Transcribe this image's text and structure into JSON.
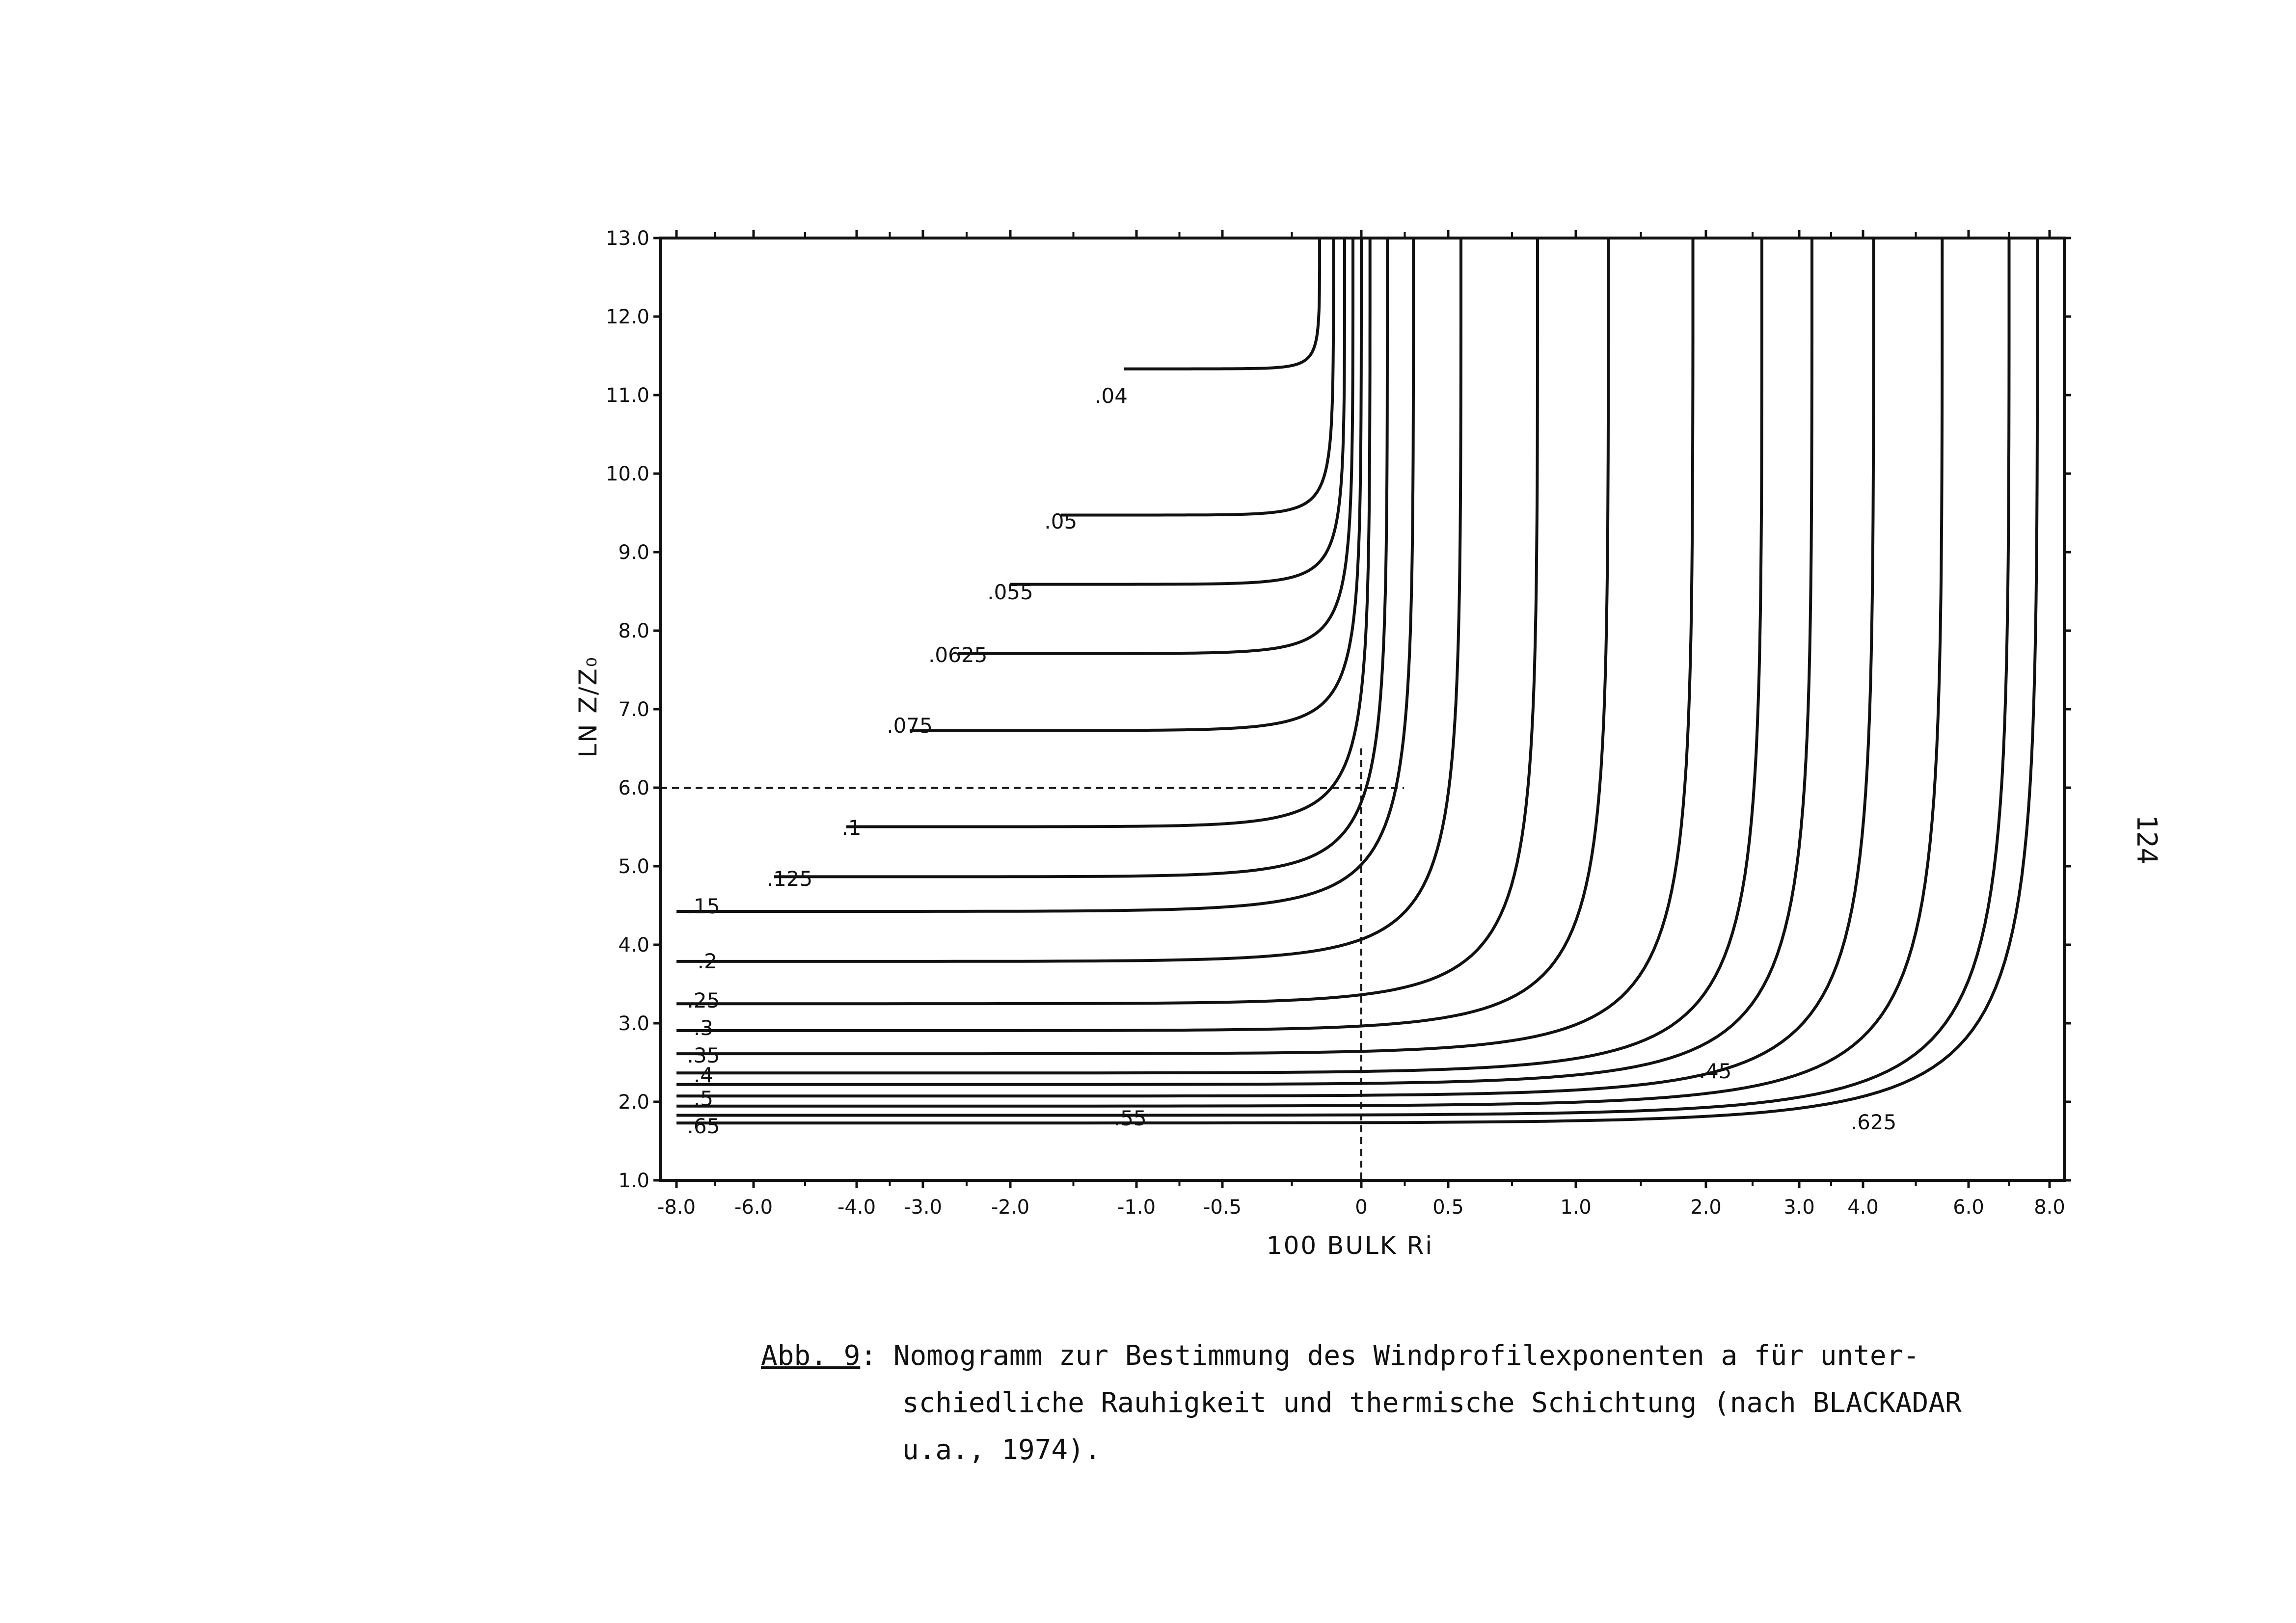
{
  "chart_data": {
    "type": "line",
    "xlabel": "100 BULK Ri",
    "ylabel": "LN Z/Z₀",
    "x_tick_labels": [
      "-8.0",
      "-6.0",
      "-4.0",
      "-3.0",
      "-2.0",
      "-1.0",
      "-0.5",
      "0",
      "0.5",
      "1.0",
      "2.0",
      "3.0",
      "4.0",
      "6.0",
      "8.0"
    ],
    "y_ticks": [
      1.0,
      2.0,
      3.0,
      4.0,
      5.0,
      6.0,
      7.0,
      8.0,
      9.0,
      10.0,
      11.0,
      12.0,
      13.0
    ],
    "y_tick_labels": [
      "1.0",
      "2.0",
      "3.0",
      "4.0",
      "5.0",
      "6.0",
      "7.0",
      "8.0",
      "9.0",
      "10.0",
      "11.0",
      "12.0",
      "13.0"
    ],
    "ylim": [
      1.0,
      13.0
    ],
    "grid": false,
    "reference_point": {
      "x": "0",
      "y": 6.0,
      "style": "dashed"
    },
    "series": [
      {
        "name": ".04",
        "label_at": [
          -1.2,
          10.9
        ]
      },
      {
        "name": ".05",
        "label_at": [
          -1.6,
          9.3
        ]
      },
      {
        "name": ".055",
        "label_at": [
          -2.0,
          8.4
        ]
      },
      {
        "name": ".0625",
        "label_at": [
          -2.6,
          7.6
        ]
      },
      {
        "name": ".075",
        "label_at": [
          -3.2,
          6.7
        ]
      },
      {
        "name": ".1",
        "label_at": [
          -4.1,
          5.4
        ]
      },
      {
        "name": ".125",
        "label_at": [
          -5.3,
          4.75
        ]
      },
      {
        "name": ".15",
        "label_at": [
          -7.3,
          4.4
        ]
      },
      {
        "name": ".2",
        "label_at": [
          -7.2,
          3.7
        ]
      },
      {
        "name": ".25",
        "label_at": [
          -7.3,
          3.2
        ]
      },
      {
        "name": ".3",
        "label_at": [
          -7.3,
          2.85
        ]
      },
      {
        "name": ".35",
        "label_at": [
          -7.3,
          2.5
        ]
      },
      {
        "name": ".4",
        "label_at": [
          -7.3,
          2.25
        ]
      },
      {
        "name": ".45",
        "label_at": [
          2.1,
          2.3
        ]
      },
      {
        "name": ".5",
        "label_at": [
          -7.3,
          1.95
        ]
      },
      {
        "name": ".55",
        "label_at": [
          -1.05,
          1.7
        ]
      },
      {
        "name": ".625",
        "label_at": [
          4.2,
          1.65
        ]
      },
      {
        "name": ".65",
        "label_at": [
          -7.3,
          1.6
        ]
      }
    ]
  },
  "caption": {
    "label": "Abb. 9",
    "line1": ":  Nomogramm zur Bestimmung des Windprofilexponenten a für unter-",
    "line2": "schiedliche Rauhigkeit und thermische Schichtung (nach BLACKADAR",
    "line3": "u.a., 1974)."
  },
  "page_number": "124"
}
